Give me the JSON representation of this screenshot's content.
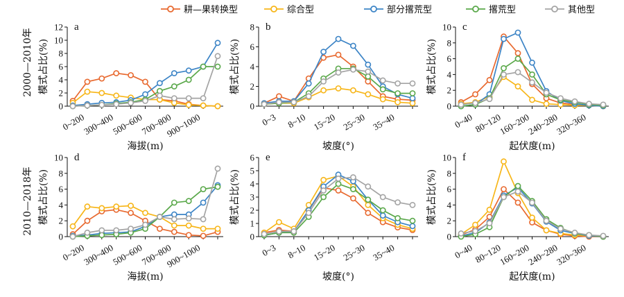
{
  "colors": {
    "耕—果转换型": "#e8692f",
    "综合型": "#f7b619",
    "部分撂荒型": "#3c84c6",
    "撂荒型": "#5aa84a",
    "其他型": "#a4a4a4"
  },
  "legend": [
    "耕—果转换型",
    "综合型",
    "部分撂荒型",
    "撂荒型",
    "其他型"
  ],
  "row_labels": [
    "2000—2010年",
    "2010—2018年"
  ],
  "chart_data": [
    {
      "panel": "a",
      "type": "line",
      "xlabel": "海拔(m)",
      "ylabel": "模式占比(%)",
      "ylim": [
        0,
        12
      ],
      "yticks": [
        0,
        2,
        4,
        6,
        8,
        10,
        12
      ],
      "categories": [
        "0~200",
        "200~300",
        "300~400",
        "400~500",
        "500~600",
        "600~700",
        "700~800",
        "800~900",
        "900~1000",
        "1000~1100",
        ">1100"
      ],
      "xticks_shown": [
        "0~200",
        "300~400",
        "500~600",
        "700~800",
        "900~1000"
      ],
      "series": [
        {
          "name": "耕—果转换型",
          "values": [
            0.8,
            3.7,
            4.2,
            5.0,
            4.7,
            3.7,
            1.0,
            0.8,
            0.3,
            0.1,
            0.0
          ]
        },
        {
          "name": "综合型",
          "values": [
            0.5,
            2.2,
            2.0,
            1.6,
            1.3,
            1.0,
            1.0,
            0.5,
            0.2,
            0.1,
            0.0
          ]
        },
        {
          "name": "部分撂荒型",
          "values": [
            0.1,
            0.3,
            0.5,
            0.6,
            0.9,
            1.8,
            3.5,
            5.0,
            5.4,
            6.0,
            9.6
          ]
        },
        {
          "name": "撂荒型",
          "values": [
            0.0,
            0.1,
            0.2,
            0.4,
            0.6,
            1.0,
            2.3,
            3.0,
            4.0,
            6.0,
            6.0
          ]
        },
        {
          "name": "其他型",
          "values": [
            0.0,
            0.1,
            0.2,
            0.3,
            0.5,
            0.8,
            1.6,
            1.2,
            1.2,
            1.2,
            7.6
          ]
        }
      ]
    },
    {
      "panel": "b",
      "type": "line",
      "xlabel": "坡度(°)",
      "ylabel": "模式占比(%)",
      "ylim": [
        0,
        8
      ],
      "yticks": [
        0,
        2,
        4,
        6,
        8
      ],
      "categories": [
        "0~3",
        "3~8",
        "8~10",
        "10~15",
        "15~20",
        "20~25",
        "25~30",
        "30~35",
        "35~40",
        "40~45",
        ">45"
      ],
      "xticks_shown": [
        "0~3",
        "8~10",
        "15~20",
        "25~30",
        "35~40"
      ],
      "series": [
        {
          "name": "耕—果转换型",
          "values": [
            0.3,
            1.0,
            0.5,
            2.8,
            4.9,
            5.2,
            4.0,
            2.5,
            1.0,
            0.7,
            0.6
          ]
        },
        {
          "name": "综合型",
          "values": [
            0.2,
            0.3,
            0.3,
            0.9,
            1.6,
            1.8,
            1.6,
            1.2,
            0.7,
            0.4,
            0.3
          ]
        },
        {
          "name": "部分撂荒型",
          "values": [
            0.3,
            0.5,
            0.5,
            2.3,
            5.5,
            6.8,
            6.1,
            4.2,
            2.0,
            1.2,
            0.8
          ]
        },
        {
          "name": "撂荒型",
          "values": [
            0.2,
            0.3,
            0.4,
            1.3,
            2.8,
            3.8,
            3.8,
            3.0,
            1.7,
            1.3,
            1.3
          ]
        },
        {
          "name": "其他型",
          "values": [
            0.2,
            0.4,
            0.4,
            1.0,
            2.5,
            3.4,
            3.7,
            3.5,
            2.6,
            2.3,
            2.3
          ]
        }
      ]
    },
    {
      "panel": "c",
      "type": "line",
      "xlabel": "起伏度(m)",
      "ylabel": "模式占比(%)",
      "ylim": [
        0,
        10
      ],
      "yticks": [
        0,
        2,
        4,
        6,
        8,
        10
      ],
      "categories": [
        "0~40",
        "40~80",
        "80~120",
        "120~160",
        "160~200",
        "200~240",
        "240~280",
        "280~320",
        "320~360",
        "360~400",
        ">400"
      ],
      "xticks_shown": [
        "0~40",
        "80~120",
        "160~200",
        "240~280",
        "320~360"
      ],
      "series": [
        {
          "name": "耕—果转换型",
          "values": [
            0.5,
            1.5,
            3.3,
            8.8,
            6.7,
            2.8,
            1.0,
            0.4,
            0.2,
            0.1,
            0.0
          ]
        },
        {
          "name": "综合型",
          "values": [
            0.3,
            0.5,
            1.2,
            3.7,
            2.5,
            0.8,
            0.3,
            0.2,
            0.1,
            0.1,
            0.0
          ]
        },
        {
          "name": "部分撂荒型",
          "values": [
            0.0,
            0.2,
            1.5,
            8.5,
            9.3,
            5.5,
            1.9,
            0.7,
            0.3,
            0.1,
            0.0
          ]
        },
        {
          "name": "撂荒型",
          "values": [
            0.0,
            0.2,
            1.0,
            4.8,
            6.0,
            4.0,
            1.5,
            0.8,
            0.5,
            0.2,
            0.1
          ]
        },
        {
          "name": "其他型",
          "values": [
            0.2,
            0.4,
            0.9,
            4.0,
            4.3,
            3.0,
            1.7,
            1.0,
            0.6,
            0.3,
            0.2
          ]
        }
      ]
    },
    {
      "panel": "d",
      "type": "line",
      "xlabel": "海拔(m)",
      "ylabel": "模式占比(%)",
      "ylim": [
        0,
        10
      ],
      "yticks": [
        0,
        2,
        4,
        6,
        8,
        10
      ],
      "categories": [
        "0~200",
        "200~300",
        "300~400",
        "400~500",
        "500~600",
        "600~700",
        "700~800",
        "800~900",
        "900~1000",
        "1000~1100",
        ">1100"
      ],
      "xticks_shown": [
        "0~200",
        "300~400",
        "500~600",
        "700~800",
        "900~1000"
      ],
      "series": [
        {
          "name": "耕—果转换型",
          "values": [
            0.3,
            2.0,
            3.2,
            3.4,
            3.0,
            2.0,
            1.0,
            0.6,
            0.2,
            0.1,
            0.6
          ]
        },
        {
          "name": "综合型",
          "values": [
            1.3,
            3.8,
            3.6,
            3.8,
            3.9,
            3.0,
            2.5,
            1.4,
            1.4,
            1.0,
            1.0
          ]
        },
        {
          "name": "部分撂荒型",
          "values": [
            0.1,
            0.2,
            0.4,
            0.5,
            0.6,
            1.3,
            2.5,
            2.8,
            2.8,
            4.3,
            6.5
          ]
        },
        {
          "name": "撂荒型",
          "values": [
            0.0,
            0.1,
            0.2,
            0.3,
            0.5,
            1.0,
            2.5,
            4.3,
            4.5,
            6.0,
            6.3
          ]
        },
        {
          "name": "其他型",
          "values": [
            0.0,
            0.5,
            0.8,
            0.8,
            1.0,
            1.5,
            2.5,
            2.2,
            2.3,
            2.2,
            8.6
          ]
        }
      ]
    },
    {
      "panel": "e",
      "type": "line",
      "xlabel": "坡度(°)",
      "ylabel": "模式占比(%)",
      "ylim": [
        0,
        6
      ],
      "yticks": [
        0,
        1,
        2,
        3,
        4,
        5,
        6
      ],
      "categories": [
        "0~3",
        "3~8",
        "8~10",
        "10~15",
        "15~20",
        "20~25",
        "25~30",
        "30~35",
        "35~40",
        "40~45",
        ">45"
      ],
      "xticks_shown": [
        "0~3",
        "8~10",
        "15~20",
        "25~30",
        "35~40"
      ],
      "series": [
        {
          "name": "耕—果转换型",
          "values": [
            0.3,
            0.5,
            0.4,
            2.0,
            3.7,
            3.5,
            2.9,
            1.8,
            1.1,
            0.7,
            0.5
          ]
        },
        {
          "name": "综合型",
          "values": [
            0.3,
            1.1,
            0.6,
            2.4,
            4.3,
            4.6,
            3.8,
            2.4,
            1.4,
            0.9,
            0.6
          ]
        },
        {
          "name": "部分撂荒型",
          "values": [
            0.1,
            0.3,
            0.4,
            2.0,
            3.8,
            4.7,
            4.2,
            2.8,
            1.6,
            1.1,
            0.8
          ]
        },
        {
          "name": "撂荒型",
          "values": [
            0.1,
            0.3,
            0.3,
            1.5,
            3.0,
            4.0,
            3.6,
            2.8,
            2.0,
            1.4,
            1.2
          ]
        },
        {
          "name": "其他型",
          "values": [
            0.2,
            0.4,
            0.4,
            1.8,
            3.5,
            4.4,
            4.5,
            3.8,
            3.0,
            2.6,
            2.4
          ]
        }
      ]
    },
    {
      "panel": "f",
      "type": "line",
      "xlabel": "起伏度(m)",
      "ylabel": "模式占比(%)",
      "ylim": [
        0,
        10
      ],
      "yticks": [
        0,
        2,
        4,
        6,
        8,
        10
      ],
      "categories": [
        "0~40",
        "40~80",
        "80~120",
        "120~160",
        "160~200",
        "200~240",
        "240~280",
        "280~320",
        "320~360",
        "360~400",
        ">400"
      ],
      "xticks_shown": [
        "0~40",
        "80~120",
        "160~200",
        "240~280",
        "320~360"
      ],
      "series": [
        {
          "name": "耕—果转换型",
          "values": [
            0.2,
            0.9,
            2.5,
            6.0,
            4.3,
            1.8,
            0.8,
            0.3,
            0.1,
            0.0,
            0.0
          ]
        },
        {
          "name": "综合型",
          "values": [
            0.3,
            1.5,
            3.4,
            9.5,
            5.5,
            2.4,
            0.8,
            0.4,
            0.2,
            0.1,
            0.0
          ]
        },
        {
          "name": "部分撂荒型",
          "values": [
            0.1,
            0.5,
            1.8,
            5.2,
            6.2,
            4.2,
            1.9,
            0.8,
            0.4,
            0.1,
            0.0
          ]
        },
        {
          "name": "撂荒型",
          "values": [
            0.0,
            0.3,
            1.2,
            5.0,
            6.4,
            4.5,
            2.2,
            1.1,
            0.4,
            0.2,
            0.0
          ]
        },
        {
          "name": "其他型",
          "values": [
            0.4,
            0.7,
            1.7,
            5.0,
            5.7,
            4.3,
            2.0,
            1.0,
            0.5,
            0.2,
            0.1
          ]
        }
      ]
    }
  ]
}
